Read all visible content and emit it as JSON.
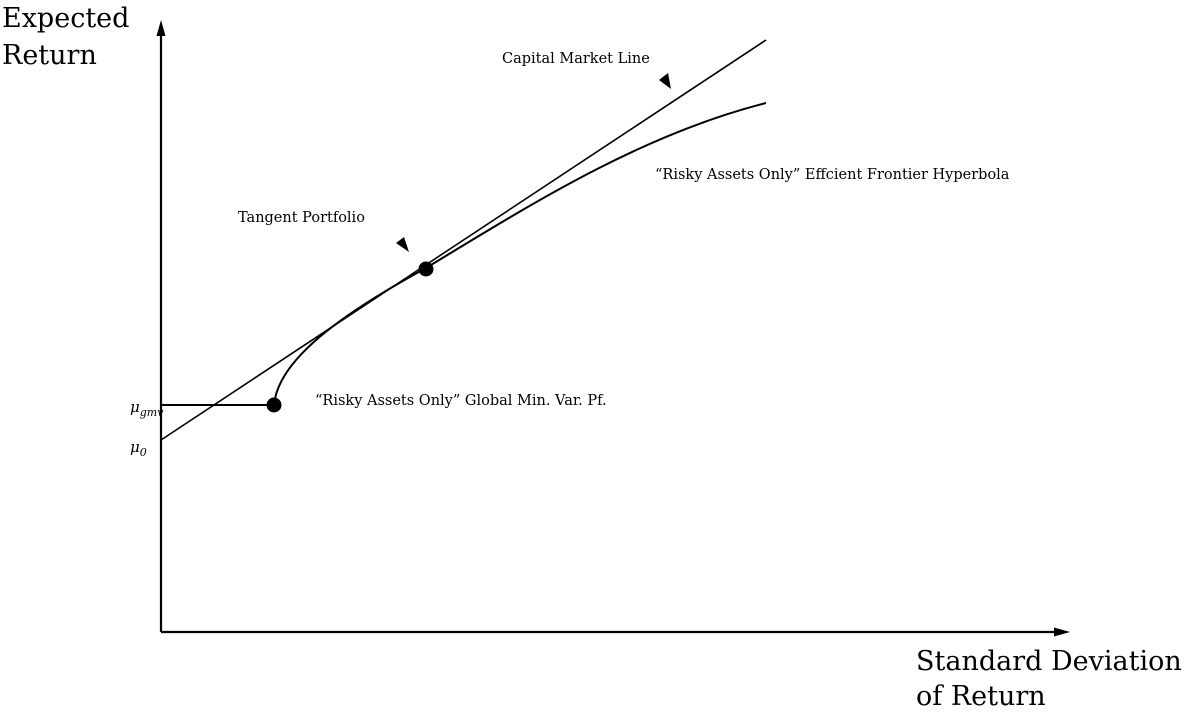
{
  "diagram": {
    "y_axis_title": [
      "Expected",
      "Return"
    ],
    "x_axis_title": [
      "Standard Deviation",
      "of Return"
    ],
    "labels": {
      "capital_market_line": "Capital Market Line",
      "efficient_frontier": "“Risky Assets Only” Effcient Frontier Hyperbola",
      "tangent_portfolio": "Tangent Portfolio",
      "gmv_portfolio": "“Risky Assets Only” Global Min. Var. Pf."
    },
    "y_ticks": {
      "mu_gmv": {
        "symbol": "μ",
        "subscript": "gmv"
      },
      "mu_0": {
        "symbol": "μ",
        "subscript": "0"
      }
    },
    "colors": {
      "ink": "#000000",
      "background": "#ffffff"
    },
    "icons": [
      "arrow-head-icon",
      "point-marker-icon"
    ]
  }
}
